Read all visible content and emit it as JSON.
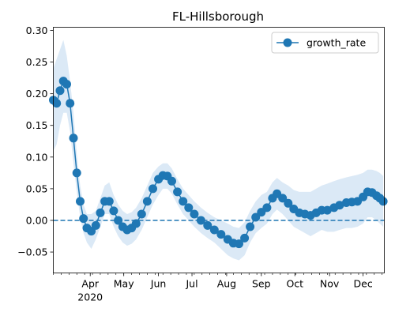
{
  "chart_data": {
    "type": "line",
    "title": "FL-Hillsborough",
    "xlabel": "",
    "ylabel": "",
    "x_range": [
      "2020-02-28",
      "2020-12-20"
    ],
    "ylim": [
      -0.083,
      0.305
    ],
    "y_ticks": [
      -0.05,
      0.0,
      0.05,
      0.1,
      0.15,
      0.2,
      0.25,
      0.3
    ],
    "y_tick_labels": [
      "−0.05",
      "0.00",
      "0.05",
      "0.10",
      "0.15",
      "0.20",
      "0.25",
      "0.30"
    ],
    "x_ticks": [
      {
        "date": "2020-04-01",
        "label": "Apr",
        "sublabel": "2020"
      },
      {
        "date": "2020-05-01",
        "label": "May",
        "sublabel": ""
      },
      {
        "date": "2020-06-01",
        "label": "Jun",
        "sublabel": ""
      },
      {
        "date": "2020-07-01",
        "label": "Jul",
        "sublabel": ""
      },
      {
        "date": "2020-08-01",
        "label": "Aug",
        "sublabel": ""
      },
      {
        "date": "2020-09-01",
        "label": "Sep",
        "sublabel": ""
      },
      {
        "date": "2020-10-01",
        "label": "Oct",
        "sublabel": ""
      },
      {
        "date": "2020-11-01",
        "label": "Nov",
        "sublabel": ""
      },
      {
        "date": "2020-12-01",
        "label": "Dec",
        "sublabel": ""
      }
    ],
    "grid": false,
    "legend_position": "top-right",
    "reference_line": {
      "y": 0.0,
      "style": "dashed",
      "color": "#1f77b4"
    },
    "series": [
      {
        "name": "growth_rate",
        "color": "#1f77b4",
        "marker": "circle",
        "band_color": "#dbe9f6",
        "points": [
          {
            "date": "2020-02-28",
            "y": 0.19,
            "lo": 0.11,
            "hi": 0.24
          },
          {
            "date": "2020-03-02",
            "y": 0.185,
            "lo": 0.12,
            "hi": 0.255
          },
          {
            "date": "2020-03-05",
            "y": 0.205,
            "lo": 0.15,
            "hi": 0.27
          },
          {
            "date": "2020-03-08",
            "y": 0.22,
            "lo": 0.17,
            "hi": 0.285
          },
          {
            "date": "2020-03-11",
            "y": 0.215,
            "lo": 0.17,
            "hi": 0.26
          },
          {
            "date": "2020-03-14",
            "y": 0.185,
            "lo": 0.14,
            "hi": 0.22
          },
          {
            "date": "2020-03-17",
            "y": 0.13,
            "lo": 0.09,
            "hi": 0.17
          },
          {
            "date": "2020-03-20",
            "y": 0.075,
            "lo": 0.045,
            "hi": 0.105
          },
          {
            "date": "2020-03-23",
            "y": 0.03,
            "lo": 0.005,
            "hi": 0.055
          },
          {
            "date": "2020-03-26",
            "y": 0.003,
            "lo": -0.02,
            "hi": 0.025
          },
          {
            "date": "2020-03-29",
            "y": -0.012,
            "lo": -0.035,
            "hi": 0.01
          },
          {
            "date": "2020-04-02",
            "y": -0.017,
            "lo": -0.045,
            "hi": 0.01
          },
          {
            "date": "2020-04-06",
            "y": -0.008,
            "lo": -0.03,
            "hi": 0.015
          },
          {
            "date": "2020-04-10",
            "y": 0.012,
            "lo": -0.01,
            "hi": 0.035
          },
          {
            "date": "2020-04-14",
            "y": 0.03,
            "lo": 0.01,
            "hi": 0.055
          },
          {
            "date": "2020-04-18",
            "y": 0.03,
            "lo": 0.01,
            "hi": 0.06
          },
          {
            "date": "2020-04-22",
            "y": 0.015,
            "lo": -0.01,
            "hi": 0.04
          },
          {
            "date": "2020-04-26",
            "y": 0.0,
            "lo": -0.025,
            "hi": 0.025
          },
          {
            "date": "2020-04-30",
            "y": -0.01,
            "lo": -0.035,
            "hi": 0.015
          },
          {
            "date": "2020-05-04",
            "y": -0.015,
            "lo": -0.04,
            "hi": 0.01
          },
          {
            "date": "2020-05-08",
            "y": -0.012,
            "lo": -0.037,
            "hi": 0.013
          },
          {
            "date": "2020-05-12",
            "y": -0.005,
            "lo": -0.03,
            "hi": 0.02
          },
          {
            "date": "2020-05-17",
            "y": 0.01,
            "lo": -0.015,
            "hi": 0.035
          },
          {
            "date": "2020-05-22",
            "y": 0.03,
            "lo": 0.005,
            "hi": 0.055
          },
          {
            "date": "2020-05-27",
            "y": 0.05,
            "lo": 0.025,
            "hi": 0.075
          },
          {
            "date": "2020-06-01",
            "y": 0.065,
            "lo": 0.04,
            "hi": 0.085
          },
          {
            "date": "2020-06-05",
            "y": 0.071,
            "lo": 0.05,
            "hi": 0.09
          },
          {
            "date": "2020-06-09",
            "y": 0.07,
            "lo": 0.05,
            "hi": 0.09
          },
          {
            "date": "2020-06-13",
            "y": 0.062,
            "lo": 0.042,
            "hi": 0.082
          },
          {
            "date": "2020-06-18",
            "y": 0.045,
            "lo": 0.025,
            "hi": 0.065
          },
          {
            "date": "2020-06-23",
            "y": 0.03,
            "lo": 0.01,
            "hi": 0.05
          },
          {
            "date": "2020-06-28",
            "y": 0.02,
            "lo": 0.0,
            "hi": 0.04
          },
          {
            "date": "2020-07-03",
            "y": 0.01,
            "lo": -0.01,
            "hi": 0.03
          },
          {
            "date": "2020-07-09",
            "y": 0.0,
            "lo": -0.02,
            "hi": 0.02
          },
          {
            "date": "2020-07-15",
            "y": -0.008,
            "lo": -0.028,
            "hi": 0.012
          },
          {
            "date": "2020-07-21",
            "y": -0.015,
            "lo": -0.035,
            "hi": 0.005
          },
          {
            "date": "2020-07-27",
            "y": -0.022,
            "lo": -0.045,
            "hi": 0.0
          },
          {
            "date": "2020-08-02",
            "y": -0.03,
            "lo": -0.055,
            "hi": -0.005
          },
          {
            "date": "2020-08-07",
            "y": -0.036,
            "lo": -0.06,
            "hi": -0.01
          },
          {
            "date": "2020-08-12",
            "y": -0.037,
            "lo": -0.063,
            "hi": -0.012
          },
          {
            "date": "2020-08-17",
            "y": -0.028,
            "lo": -0.055,
            "hi": -0.003
          },
          {
            "date": "2020-08-22",
            "y": -0.01,
            "lo": -0.035,
            "hi": 0.015
          },
          {
            "date": "2020-08-27",
            "y": 0.005,
            "lo": -0.02,
            "hi": 0.03
          },
          {
            "date": "2020-09-01",
            "y": 0.013,
            "lo": -0.012,
            "hi": 0.04
          },
          {
            "date": "2020-09-06",
            "y": 0.02,
            "lo": -0.005,
            "hi": 0.045
          },
          {
            "date": "2020-09-11",
            "y": 0.035,
            "lo": 0.01,
            "hi": 0.06
          },
          {
            "date": "2020-09-15",
            "y": 0.042,
            "lo": 0.017,
            "hi": 0.067
          },
          {
            "date": "2020-09-20",
            "y": 0.035,
            "lo": 0.01,
            "hi": 0.06
          },
          {
            "date": "2020-09-25",
            "y": 0.027,
            "lo": 0.0,
            "hi": 0.055
          },
          {
            "date": "2020-09-30",
            "y": 0.018,
            "lo": -0.01,
            "hi": 0.048
          },
          {
            "date": "2020-10-05",
            "y": 0.012,
            "lo": -0.015,
            "hi": 0.045
          },
          {
            "date": "2020-10-10",
            "y": 0.01,
            "lo": -0.02,
            "hi": 0.045
          },
          {
            "date": "2020-10-15",
            "y": 0.008,
            "lo": -0.025,
            "hi": 0.045
          },
          {
            "date": "2020-10-20",
            "y": 0.012,
            "lo": -0.02,
            "hi": 0.05
          },
          {
            "date": "2020-10-25",
            "y": 0.016,
            "lo": -0.015,
            "hi": 0.055
          },
          {
            "date": "2020-10-30",
            "y": 0.016,
            "lo": -0.018,
            "hi": 0.058
          },
          {
            "date": "2020-11-05",
            "y": 0.02,
            "lo": -0.018,
            "hi": 0.062
          },
          {
            "date": "2020-11-10",
            "y": 0.024,
            "lo": -0.015,
            "hi": 0.065
          },
          {
            "date": "2020-11-16",
            "y": 0.028,
            "lo": -0.012,
            "hi": 0.068
          },
          {
            "date": "2020-11-21",
            "y": 0.029,
            "lo": -0.012,
            "hi": 0.07
          },
          {
            "date": "2020-11-26",
            "y": 0.03,
            "lo": -0.01,
            "hi": 0.072
          },
          {
            "date": "2020-12-01",
            "y": 0.037,
            "lo": -0.005,
            "hi": 0.075
          },
          {
            "date": "2020-12-05",
            "y": 0.045,
            "lo": 0.005,
            "hi": 0.08
          },
          {
            "date": "2020-12-09",
            "y": 0.044,
            "lo": 0.005,
            "hi": 0.08
          },
          {
            "date": "2020-12-13",
            "y": 0.039,
            "lo": 0.0,
            "hi": 0.078
          },
          {
            "date": "2020-12-16",
            "y": 0.035,
            "lo": -0.005,
            "hi": 0.075
          },
          {
            "date": "2020-12-19",
            "y": 0.03,
            "lo": -0.01,
            "hi": 0.07
          }
        ]
      }
    ]
  }
}
